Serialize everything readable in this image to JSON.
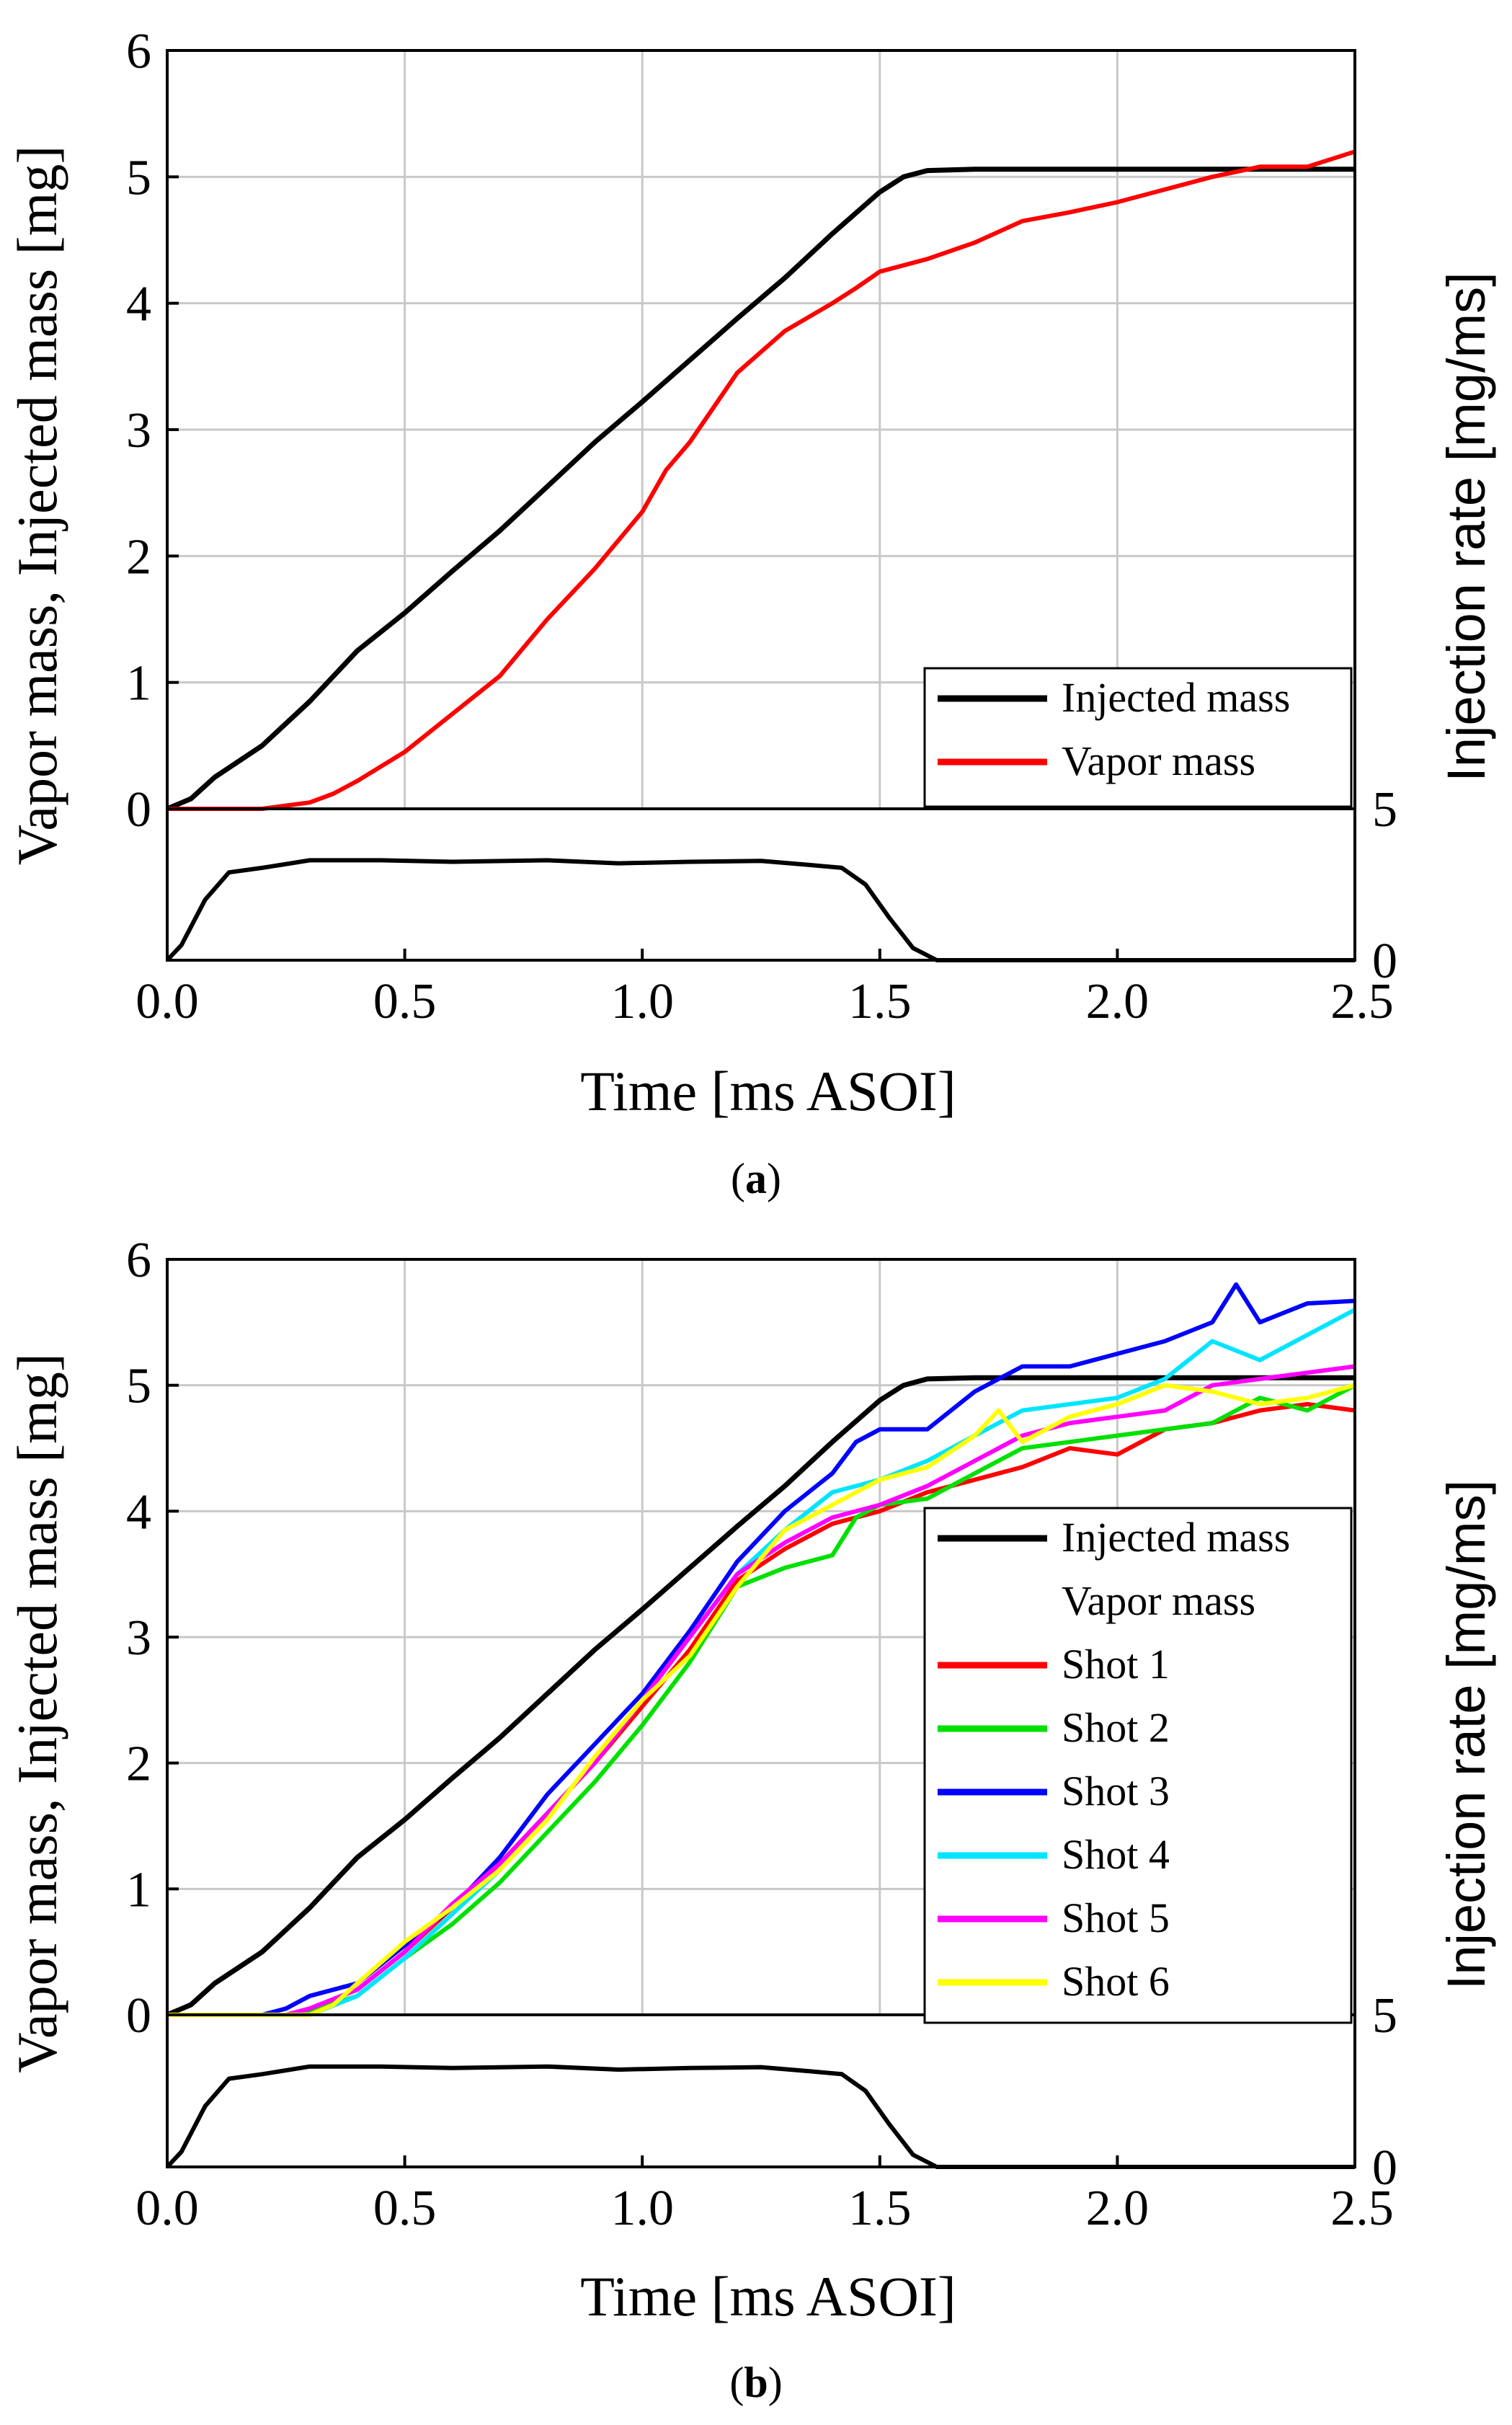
{
  "chart_data": [
    {
      "type": "line",
      "panel": "a",
      "caption": "a",
      "xlabel": "Time [ms ASOI]",
      "ylabel": "Vapor mass, Injected mass [mg]",
      "ylabel_right": "Injection rate [mg/ms]",
      "xlim": [
        0,
        2.5
      ],
      "ylim": [
        0,
        6
      ],
      "rate_ylim": [
        0,
        5
      ],
      "x_ticks": [
        "0.0",
        "0.5",
        "1.0",
        "1.5",
        "2.0",
        "2.5"
      ],
      "y_ticks": [
        "0",
        "1",
        "2",
        "3",
        "4",
        "5",
        "6"
      ],
      "rate_ticks": [
        "0",
        "5"
      ],
      "legend_position": "lower-right",
      "series": [
        {
          "name": "Injected mass",
          "color": "#000000",
          "points": [
            [
              0,
              0
            ],
            [
              0.05,
              0.08
            ],
            [
              0.1,
              0.25
            ],
            [
              0.2,
              0.5
            ],
            [
              0.3,
              0.85
            ],
            [
              0.4,
              1.25
            ],
            [
              0.5,
              1.55
            ],
            [
              0.6,
              1.88
            ],
            [
              0.7,
              2.2
            ],
            [
              0.8,
              2.55
            ],
            [
              0.9,
              2.9
            ],
            [
              1.0,
              3.22
            ],
            [
              1.1,
              3.55
            ],
            [
              1.2,
              3.88
            ],
            [
              1.3,
              4.2
            ],
            [
              1.4,
              4.55
            ],
            [
              1.5,
              4.88
            ],
            [
              1.55,
              5.0
            ],
            [
              1.6,
              5.05
            ],
            [
              1.7,
              5.06
            ],
            [
              2.5,
              5.06
            ]
          ]
        },
        {
          "name": "Vapor mass",
          "color": "#ff0000",
          "points": [
            [
              0,
              0
            ],
            [
              0.2,
              0
            ],
            [
              0.3,
              0.05
            ],
            [
              0.35,
              0.12
            ],
            [
              0.4,
              0.22
            ],
            [
              0.5,
              0.45
            ],
            [
              0.6,
              0.75
            ],
            [
              0.7,
              1.05
            ],
            [
              0.8,
              1.5
            ],
            [
              0.9,
              1.9
            ],
            [
              1.0,
              2.35
            ],
            [
              1.05,
              2.68
            ],
            [
              1.1,
              2.9
            ],
            [
              1.2,
              3.45
            ],
            [
              1.3,
              3.78
            ],
            [
              1.4,
              4.0
            ],
            [
              1.45,
              4.12
            ],
            [
              1.5,
              4.25
            ],
            [
              1.6,
              4.35
            ],
            [
              1.7,
              4.48
            ],
            [
              1.8,
              4.65
            ],
            [
              1.9,
              4.72
            ],
            [
              2.0,
              4.8
            ],
            [
              2.1,
              4.9
            ],
            [
              2.2,
              5.0
            ],
            [
              2.3,
              5.08
            ],
            [
              2.4,
              5.08
            ],
            [
              2.5,
              5.2
            ]
          ]
        }
      ],
      "injection_rate": {
        "name": "Injection rate",
        "color": "#000000",
        "points": [
          [
            0,
            0
          ],
          [
            0.03,
            0.5
          ],
          [
            0.08,
            2.0
          ],
          [
            0.13,
            2.9
          ],
          [
            0.2,
            3.05
          ],
          [
            0.3,
            3.3
          ],
          [
            0.45,
            3.3
          ],
          [
            0.6,
            3.25
          ],
          [
            0.8,
            3.3
          ],
          [
            0.95,
            3.2
          ],
          [
            1.1,
            3.25
          ],
          [
            1.25,
            3.28
          ],
          [
            1.35,
            3.15
          ],
          [
            1.42,
            3.05
          ],
          [
            1.47,
            2.5
          ],
          [
            1.52,
            1.4
          ],
          [
            1.57,
            0.4
          ],
          [
            1.62,
            0.0
          ],
          [
            2.5,
            0.0
          ]
        ]
      }
    },
    {
      "type": "line",
      "panel": "b",
      "caption": "b",
      "xlabel": "Time [ms ASOI]",
      "ylabel": "Vapor mass, Injected mass [mg]",
      "ylabel_right": "Injection rate [mg/ms]",
      "xlim": [
        0,
        2.5
      ],
      "ylim": [
        0,
        6
      ],
      "rate_ylim": [
        0,
        5
      ],
      "x_ticks": [
        "0.0",
        "0.5",
        "1.0",
        "1.5",
        "2.0",
        "2.5"
      ],
      "y_ticks": [
        "0",
        "1",
        "2",
        "3",
        "4",
        "5",
        "6"
      ],
      "rate_ticks": [
        "0",
        "5"
      ],
      "legend_position": "right",
      "legend_subheading": "Vapor mass",
      "series": [
        {
          "name": "Injected mass",
          "color": "#000000",
          "points": [
            [
              0,
              0
            ],
            [
              0.05,
              0.08
            ],
            [
              0.1,
              0.25
            ],
            [
              0.2,
              0.5
            ],
            [
              0.3,
              0.85
            ],
            [
              0.4,
              1.25
            ],
            [
              0.5,
              1.55
            ],
            [
              0.6,
              1.88
            ],
            [
              0.7,
              2.2
            ],
            [
              0.8,
              2.55
            ],
            [
              0.9,
              2.9
            ],
            [
              1.0,
              3.22
            ],
            [
              1.1,
              3.55
            ],
            [
              1.2,
              3.88
            ],
            [
              1.3,
              4.2
            ],
            [
              1.4,
              4.55
            ],
            [
              1.5,
              4.88
            ],
            [
              1.55,
              5.0
            ],
            [
              1.6,
              5.05
            ],
            [
              1.7,
              5.06
            ],
            [
              2.5,
              5.06
            ]
          ]
        },
        {
          "name": "Shot 1",
          "color": "#ff0000",
          "points": [
            [
              0,
              0
            ],
            [
              0.25,
              0
            ],
            [
              0.3,
              0.05
            ],
            [
              0.4,
              0.2
            ],
            [
              0.5,
              0.5
            ],
            [
              0.6,
              0.85
            ],
            [
              0.7,
              1.2
            ],
            [
              0.8,
              1.6
            ],
            [
              0.9,
              2.0
            ],
            [
              1.0,
              2.45
            ],
            [
              1.1,
              2.9
            ],
            [
              1.2,
              3.45
            ],
            [
              1.3,
              3.7
            ],
            [
              1.4,
              3.9
            ],
            [
              1.5,
              4.0
            ],
            [
              1.6,
              4.15
            ],
            [
              1.7,
              4.25
            ],
            [
              1.8,
              4.35
            ],
            [
              1.9,
              4.5
            ],
            [
              2.0,
              4.45
            ],
            [
              2.1,
              4.65
            ],
            [
              2.2,
              4.7
            ],
            [
              2.3,
              4.8
            ],
            [
              2.4,
              4.85
            ],
            [
              2.5,
              4.8
            ]
          ]
        },
        {
          "name": "Shot 2",
          "color": "#00e000",
          "points": [
            [
              0,
              0
            ],
            [
              0.25,
              0
            ],
            [
              0.3,
              0.03
            ],
            [
              0.4,
              0.15
            ],
            [
              0.5,
              0.45
            ],
            [
              0.6,
              0.72
            ],
            [
              0.7,
              1.05
            ],
            [
              0.8,
              1.45
            ],
            [
              0.9,
              1.85
            ],
            [
              1.0,
              2.3
            ],
            [
              1.1,
              2.8
            ],
            [
              1.2,
              3.4
            ],
            [
              1.3,
              3.55
            ],
            [
              1.4,
              3.65
            ],
            [
              1.45,
              3.95
            ],
            [
              1.5,
              4.05
            ],
            [
              1.6,
              4.1
            ],
            [
              1.7,
              4.3
            ],
            [
              1.8,
              4.5
            ],
            [
              1.9,
              4.55
            ],
            [
              2.0,
              4.6
            ],
            [
              2.1,
              4.65
            ],
            [
              2.2,
              4.7
            ],
            [
              2.3,
              4.9
            ],
            [
              2.4,
              4.8
            ],
            [
              2.5,
              5.0
            ]
          ]
        },
        {
          "name": "Shot 3",
          "color": "#0000ff",
          "points": [
            [
              0,
              0
            ],
            [
              0.2,
              0
            ],
            [
              0.25,
              0.05
            ],
            [
              0.3,
              0.15
            ],
            [
              0.4,
              0.25
            ],
            [
              0.5,
              0.55
            ],
            [
              0.6,
              0.85
            ],
            [
              0.7,
              1.25
            ],
            [
              0.8,
              1.75
            ],
            [
              0.9,
              2.15
            ],
            [
              1.0,
              2.55
            ],
            [
              1.1,
              3.05
            ],
            [
              1.2,
              3.6
            ],
            [
              1.3,
              4.0
            ],
            [
              1.4,
              4.3
            ],
            [
              1.45,
              4.55
            ],
            [
              1.5,
              4.65
            ],
            [
              1.6,
              4.65
            ],
            [
              1.7,
              4.95
            ],
            [
              1.8,
              5.15
            ],
            [
              1.9,
              5.15
            ],
            [
              2.0,
              5.25
            ],
            [
              2.1,
              5.35
            ],
            [
              2.2,
              5.5
            ],
            [
              2.25,
              5.8
            ],
            [
              2.3,
              5.5
            ],
            [
              2.4,
              5.65
            ],
            [
              2.5,
              5.67
            ]
          ]
        },
        {
          "name": "Shot 4",
          "color": "#00e5ff",
          "points": [
            [
              0,
              0
            ],
            [
              0.3,
              0
            ],
            [
              0.4,
              0.15
            ],
            [
              0.5,
              0.45
            ],
            [
              0.6,
              0.8
            ],
            [
              0.7,
              1.15
            ],
            [
              0.8,
              1.6
            ],
            [
              0.9,
              2.0
            ],
            [
              1.0,
              2.5
            ],
            [
              1.1,
              3.0
            ],
            [
              1.2,
              3.5
            ],
            [
              1.3,
              3.85
            ],
            [
              1.4,
              4.15
            ],
            [
              1.5,
              4.25
            ],
            [
              1.6,
              4.4
            ],
            [
              1.7,
              4.6
            ],
            [
              1.8,
              4.8
            ],
            [
              1.9,
              4.85
            ],
            [
              2.0,
              4.9
            ],
            [
              2.1,
              5.05
            ],
            [
              2.2,
              5.35
            ],
            [
              2.3,
              5.2
            ],
            [
              2.4,
              5.4
            ],
            [
              2.5,
              5.6
            ]
          ]
        },
        {
          "name": "Shot 5",
          "color": "#ff00ff",
          "points": [
            [
              0,
              0
            ],
            [
              0.25,
              0
            ],
            [
              0.3,
              0.05
            ],
            [
              0.4,
              0.2
            ],
            [
              0.5,
              0.5
            ],
            [
              0.6,
              0.88
            ],
            [
              0.7,
              1.2
            ],
            [
              0.8,
              1.6
            ],
            [
              0.9,
              2.0
            ],
            [
              1.0,
              2.5
            ],
            [
              1.1,
              3.0
            ],
            [
              1.2,
              3.5
            ],
            [
              1.3,
              3.75
            ],
            [
              1.4,
              3.95
            ],
            [
              1.5,
              4.05
            ],
            [
              1.6,
              4.2
            ],
            [
              1.7,
              4.4
            ],
            [
              1.8,
              4.6
            ],
            [
              1.9,
              4.7
            ],
            [
              2.0,
              4.75
            ],
            [
              2.1,
              4.8
            ],
            [
              2.2,
              5.0
            ],
            [
              2.3,
              5.05
            ],
            [
              2.4,
              5.1
            ],
            [
              2.5,
              5.15
            ]
          ]
        },
        {
          "name": "Shot 6",
          "color": "#ffff00",
          "points": [
            [
              0,
              0
            ],
            [
              0.3,
              0
            ],
            [
              0.35,
              0.08
            ],
            [
              0.4,
              0.25
            ],
            [
              0.5,
              0.58
            ],
            [
              0.6,
              0.85
            ],
            [
              0.7,
              1.15
            ],
            [
              0.8,
              1.55
            ],
            [
              0.9,
              2.05
            ],
            [
              1.0,
              2.5
            ],
            [
              1.1,
              2.85
            ],
            [
              1.2,
              3.4
            ],
            [
              1.3,
              3.85
            ],
            [
              1.4,
              4.05
            ],
            [
              1.5,
              4.25
            ],
            [
              1.6,
              4.35
            ],
            [
              1.7,
              4.6
            ],
            [
              1.75,
              4.8
            ],
            [
              1.8,
              4.55
            ],
            [
              1.9,
              4.75
            ],
            [
              2.0,
              4.85
            ],
            [
              2.1,
              5.0
            ],
            [
              2.2,
              4.95
            ],
            [
              2.3,
              4.85
            ],
            [
              2.4,
              4.9
            ],
            [
              2.5,
              5.0
            ]
          ]
        }
      ],
      "injection_rate": {
        "name": "Injection rate",
        "color": "#000000",
        "points": [
          [
            0,
            0
          ],
          [
            0.03,
            0.5
          ],
          [
            0.08,
            2.0
          ],
          [
            0.13,
            2.9
          ],
          [
            0.2,
            3.05
          ],
          [
            0.3,
            3.3
          ],
          [
            0.45,
            3.3
          ],
          [
            0.6,
            3.25
          ],
          [
            0.8,
            3.3
          ],
          [
            0.95,
            3.2
          ],
          [
            1.1,
            3.25
          ],
          [
            1.25,
            3.28
          ],
          [
            1.35,
            3.15
          ],
          [
            1.42,
            3.05
          ],
          [
            1.47,
            2.5
          ],
          [
            1.52,
            1.4
          ],
          [
            1.57,
            0.4
          ],
          [
            1.62,
            0.0
          ],
          [
            2.5,
            0.0
          ]
        ]
      }
    }
  ]
}
